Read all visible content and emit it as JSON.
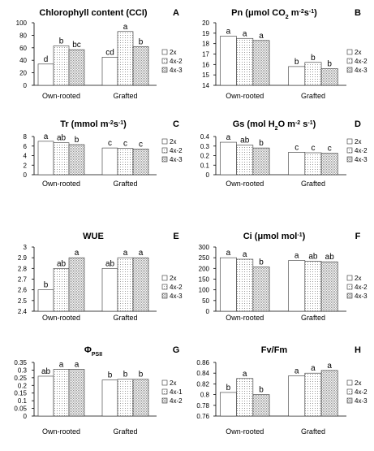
{
  "palette": {
    "axis": "#000000",
    "bar_stroke": "#333333",
    "dot": "#9a9a9a"
  },
  "chart_data": [
    {
      "panel": "A",
      "type": "bar",
      "title": "Chlorophyll content (CCI)",
      "title_parts": [
        [
          "Chlorophyll content (CCI)",
          "n"
        ]
      ],
      "categories": [
        "Own-rooted",
        "Grafted"
      ],
      "ylim": [
        0,
        100
      ],
      "yticks": [
        0,
        20,
        40,
        60,
        80,
        100
      ],
      "series": [
        {
          "name": "2x",
          "pattern": "white",
          "values": [
            34,
            45
          ],
          "letters": [
            "d",
            "cd"
          ]
        },
        {
          "name": "4x-2",
          "pattern": "dots",
          "values": [
            63,
            86
          ],
          "letters": [
            "b",
            "a"
          ]
        },
        {
          "name": "4x-3",
          "pattern": "dense",
          "values": [
            57,
            62
          ],
          "letters": [
            "bc",
            "b"
          ]
        }
      ]
    },
    {
      "panel": "B",
      "type": "bar",
      "title": "Pn (μmol CO2 m-2s-1)",
      "title_parts": [
        [
          "Pn (μmol CO",
          "n"
        ],
        [
          "2",
          "sub"
        ],
        [
          " m",
          "n"
        ],
        [
          "-2",
          "sup"
        ],
        [
          "s",
          "n"
        ],
        [
          "-1",
          "sup"
        ],
        [
          ")",
          "n"
        ]
      ],
      "categories": [
        "Own-rooted",
        "Grafted"
      ],
      "ylim": [
        14,
        20
      ],
      "yticks": [
        14,
        15,
        16,
        17,
        18,
        19,
        20
      ],
      "series": [
        {
          "name": "2x",
          "pattern": "white",
          "values": [
            18.7,
            15.8
          ],
          "letters": [
            "a",
            "b"
          ]
        },
        {
          "name": "4x-2",
          "pattern": "dots",
          "values": [
            18.5,
            16.2
          ],
          "letters": [
            "a",
            "b"
          ]
        },
        {
          "name": "4x-3",
          "pattern": "dense",
          "values": [
            18.3,
            15.6
          ],
          "letters": [
            "a",
            "b"
          ]
        }
      ]
    },
    {
      "panel": "C",
      "type": "bar",
      "title": "Tr (mmol m-2s-1)",
      "title_parts": [
        [
          "Tr (mmol m",
          "n"
        ],
        [
          "-2",
          "sup"
        ],
        [
          "s",
          "n"
        ],
        [
          "-1",
          "sup"
        ],
        [
          ")",
          "n"
        ]
      ],
      "categories": [
        "Own-rooted",
        "Grafted"
      ],
      "ylim": [
        0,
        8
      ],
      "yticks": [
        0,
        2,
        4,
        6,
        8
      ],
      "series": [
        {
          "name": "2x",
          "pattern": "white",
          "values": [
            7.0,
            5.6
          ],
          "letters": [
            "a",
            "c"
          ]
        },
        {
          "name": "4x-2",
          "pattern": "dots",
          "values": [
            6.7,
            5.5
          ],
          "letters": [
            "ab",
            "c"
          ]
        },
        {
          "name": "4x-3",
          "pattern": "dense",
          "values": [
            6.3,
            5.4
          ],
          "letters": [
            "b",
            "c"
          ]
        }
      ]
    },
    {
      "panel": "D",
      "type": "bar",
      "title": "Gs (mol H2O m-2 s-1)",
      "title_parts": [
        [
          "Gs (mol H",
          "n"
        ],
        [
          "2",
          "sub"
        ],
        [
          "O m",
          "n"
        ],
        [
          "-2",
          "sup"
        ],
        [
          " s",
          "n"
        ],
        [
          "-1",
          "sup"
        ],
        [
          ")",
          "n"
        ]
      ],
      "categories": [
        "Own-rooted",
        "Grafted"
      ],
      "ylim": [
        0,
        0.4
      ],
      "yticks": [
        0,
        0.1,
        0.2,
        0.3,
        0.4
      ],
      "series": [
        {
          "name": "2x",
          "pattern": "white",
          "values": [
            0.34,
            0.235
          ],
          "letters": [
            "a",
            "c"
          ]
        },
        {
          "name": "4x-2",
          "pattern": "dots",
          "values": [
            0.31,
            0.23
          ],
          "letters": [
            "ab",
            "c"
          ]
        },
        {
          "name": "4x-3",
          "pattern": "dense",
          "values": [
            0.28,
            0.225
          ],
          "letters": [
            "b",
            "c"
          ]
        }
      ]
    },
    {
      "panel": "E",
      "type": "bar",
      "title": "WUE",
      "title_parts": [
        [
          "WUE",
          "n"
        ]
      ],
      "categories": [
        "Own-rooted",
        "Grafted"
      ],
      "ylim": [
        2.4,
        3
      ],
      "yticks": [
        2.4,
        2.5,
        2.6,
        2.7,
        2.8,
        2.9,
        3
      ],
      "series": [
        {
          "name": "2x",
          "pattern": "white",
          "values": [
            2.6,
            2.8
          ],
          "letters": [
            "b",
            "ab"
          ]
        },
        {
          "name": "4x-2",
          "pattern": "dots",
          "values": [
            2.8,
            2.9
          ],
          "letters": [
            "ab",
            "a"
          ]
        },
        {
          "name": "4x-3",
          "pattern": "dense",
          "values": [
            2.9,
            2.9
          ],
          "letters": [
            "a",
            "a"
          ]
        }
      ]
    },
    {
      "panel": "F",
      "type": "bar",
      "title": "Ci (μmol mol-1)",
      "title_parts": [
        [
          "Ci (μmol mol",
          "n"
        ],
        [
          "-1",
          "sup"
        ],
        [
          ")",
          "n"
        ]
      ],
      "categories": [
        "Own-rooted",
        "Grafted"
      ],
      "ylim": [
        0,
        300
      ],
      "yticks": [
        0,
        50,
        100,
        150,
        200,
        250,
        300
      ],
      "series": [
        {
          "name": "2x",
          "pattern": "white",
          "values": [
            250,
            237
          ],
          "letters": [
            "a",
            "a"
          ]
        },
        {
          "name": "4x-2",
          "pattern": "dots",
          "values": [
            243,
            233
          ],
          "letters": [
            "a",
            "ab"
          ]
        },
        {
          "name": "4x-3",
          "pattern": "dense",
          "values": [
            207,
            231
          ],
          "letters": [
            "b",
            "ab"
          ]
        }
      ]
    },
    {
      "panel": "G",
      "type": "bar",
      "title": "ΦPSII",
      "title_parts": [
        [
          "Φ",
          "n"
        ],
        [
          "PSII",
          "sub"
        ]
      ],
      "categories": [
        "Own-rooted",
        "Grafted"
      ],
      "ylim": [
        0,
        0.35
      ],
      "yticks": [
        0,
        0.05,
        0.1,
        0.15,
        0.2,
        0.25,
        0.3,
        0.35
      ],
      "series": [
        {
          "name": "2x",
          "pattern": "white",
          "values": [
            0.26,
            0.235
          ],
          "letters": [
            "ab",
            "b"
          ]
        },
        {
          "name": "4x-1",
          "pattern": "dots",
          "values": [
            0.305,
            0.24
          ],
          "letters": [
            "a",
            "b"
          ]
        },
        {
          "name": "4x-2",
          "pattern": "dense",
          "values": [
            0.305,
            0.24
          ],
          "letters": [
            "a",
            "b"
          ]
        }
      ]
    },
    {
      "panel": "H",
      "type": "bar",
      "title": "Fv/Fm",
      "title_parts": [
        [
          "Fv/Fm",
          "n"
        ]
      ],
      "categories": [
        "Own-rooted",
        "Grafted"
      ],
      "ylim": [
        0.76,
        0.86
      ],
      "yticks": [
        0.76,
        0.78,
        0.8,
        0.82,
        0.84,
        0.86
      ],
      "series": [
        {
          "name": "2x",
          "pattern": "white",
          "values": [
            0.804,
            0.835
          ],
          "letters": [
            "b",
            "a"
          ]
        },
        {
          "name": "4x-2",
          "pattern": "dots",
          "values": [
            0.83,
            0.84
          ],
          "letters": [
            "a",
            "a"
          ]
        },
        {
          "name": "4x-3",
          "pattern": "dense",
          "values": [
            0.8,
            0.845
          ],
          "letters": [
            "b",
            "a"
          ]
        }
      ]
    }
  ]
}
